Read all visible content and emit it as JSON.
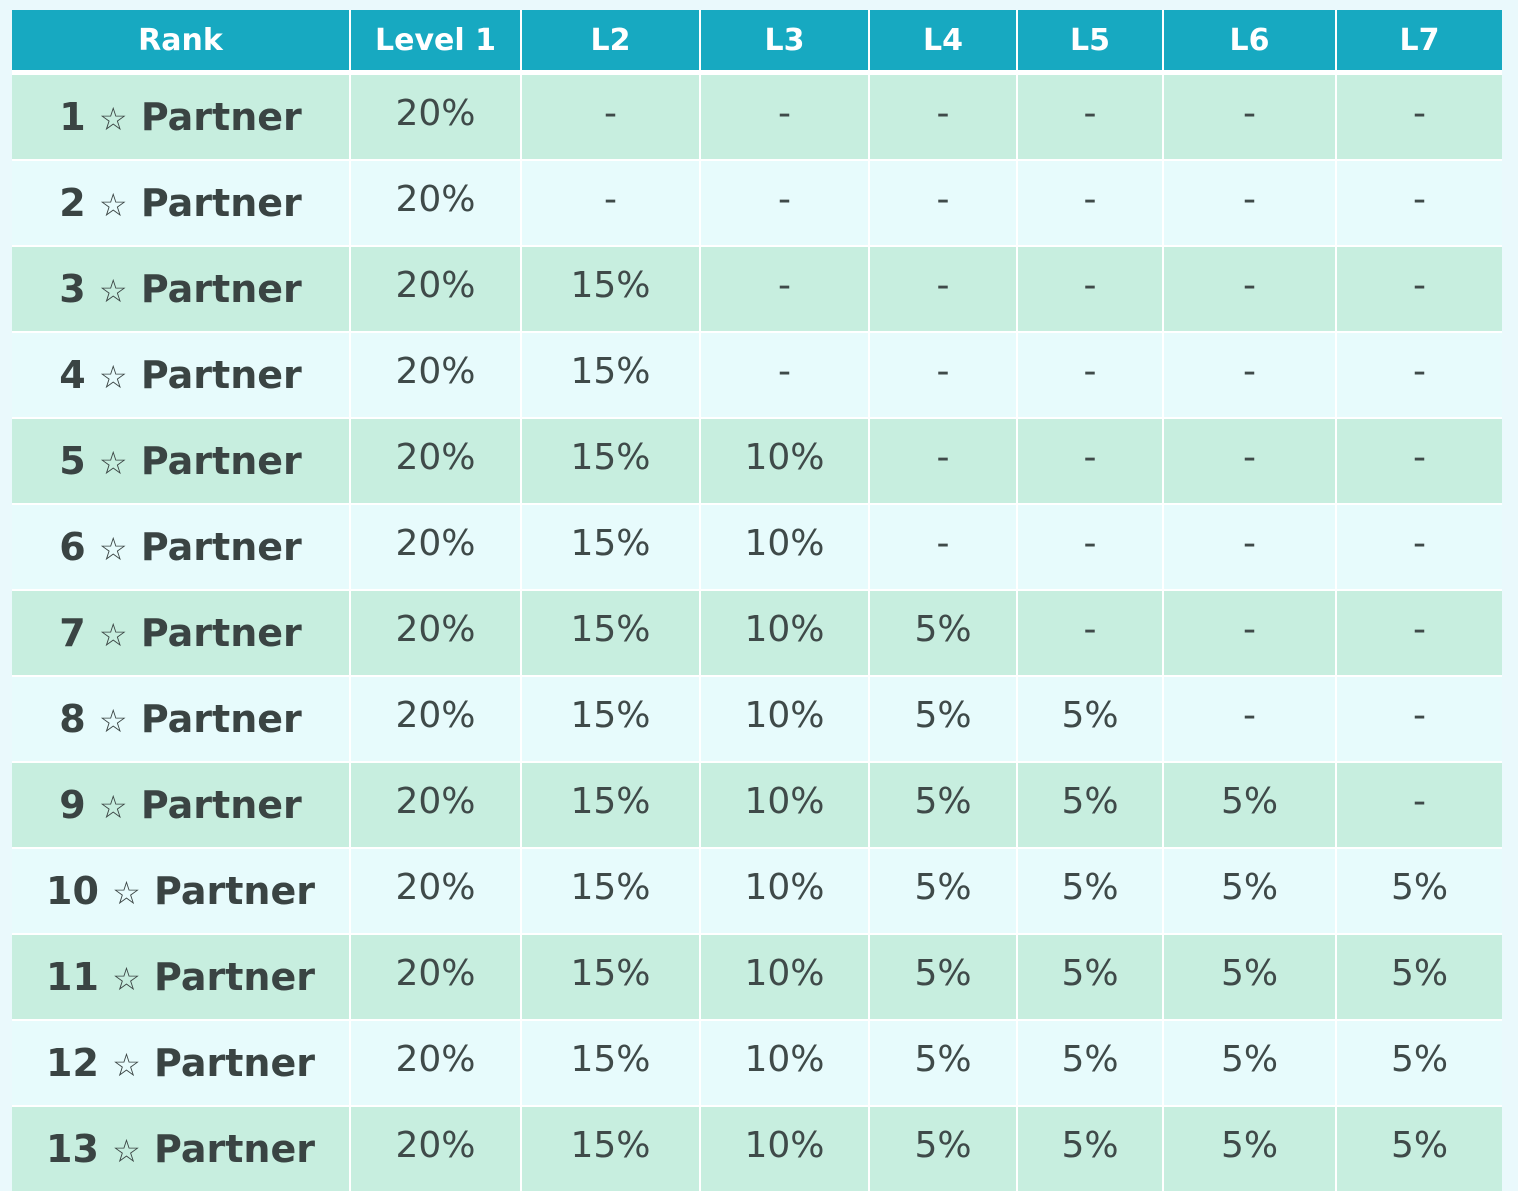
{
  "table": {
    "headers": [
      "Rank",
      "Level 1",
      "L2",
      "L3",
      "L4",
      "L5",
      "L6",
      "L7"
    ],
    "star_symbol": "☆",
    "rows": [
      {
        "rank_num": "1",
        "rank_label": "Partner",
        "values": [
          "20%",
          "-",
          "-",
          "-",
          "-",
          "-",
          "-"
        ]
      },
      {
        "rank_num": "2",
        "rank_label": "Partner",
        "values": [
          "20%",
          "-",
          "-",
          "-",
          "-",
          "-",
          "-"
        ]
      },
      {
        "rank_num": "3",
        "rank_label": "Partner",
        "values": [
          "20%",
          "15%",
          "-",
          "-",
          "-",
          "-",
          "-"
        ]
      },
      {
        "rank_num": "4",
        "rank_label": "Partner",
        "values": [
          "20%",
          "15%",
          "-",
          "-",
          "-",
          "-",
          "-"
        ]
      },
      {
        "rank_num": "5",
        "rank_label": "Partner",
        "values": [
          "20%",
          "15%",
          "10%",
          "-",
          "-",
          "-",
          "-"
        ]
      },
      {
        "rank_num": "6",
        "rank_label": "Partner",
        "values": [
          "20%",
          "15%",
          "10%",
          "-",
          "-",
          "-",
          "-"
        ]
      },
      {
        "rank_num": "7",
        "rank_label": "Partner",
        "values": [
          "20%",
          "15%",
          "10%",
          "5%",
          "-",
          "-",
          "-"
        ]
      },
      {
        "rank_num": "8",
        "rank_label": "Partner",
        "values": [
          "20%",
          "15%",
          "10%",
          "5%",
          "5%",
          "-",
          "-"
        ]
      },
      {
        "rank_num": "9",
        "rank_label": "Partner",
        "values": [
          "20%",
          "15%",
          "10%",
          "5%",
          "5%",
          "5%",
          "-"
        ]
      },
      {
        "rank_num": "10",
        "rank_label": "Partner",
        "values": [
          "20%",
          "15%",
          "10%",
          "5%",
          "5%",
          "5%",
          "5%"
        ]
      },
      {
        "rank_num": "11",
        "rank_label": "Partner",
        "values": [
          "20%",
          "15%",
          "10%",
          "5%",
          "5%",
          "5%",
          "5%"
        ]
      },
      {
        "rank_num": "12",
        "rank_label": "Partner",
        "values": [
          "20%",
          "15%",
          "10%",
          "5%",
          "5%",
          "5%",
          "5%"
        ]
      },
      {
        "rank_num": "13",
        "rank_label": "Partner",
        "values": [
          "20%",
          "15%",
          "10%",
          "5%",
          "5%",
          "5%",
          "5%"
        ]
      }
    ]
  },
  "colors": {
    "header_bg": "#17a9c1",
    "row_odd_bg": "#c7eedf",
    "row_even_bg": "#e7fbfc",
    "text": "#3f4a49"
  }
}
